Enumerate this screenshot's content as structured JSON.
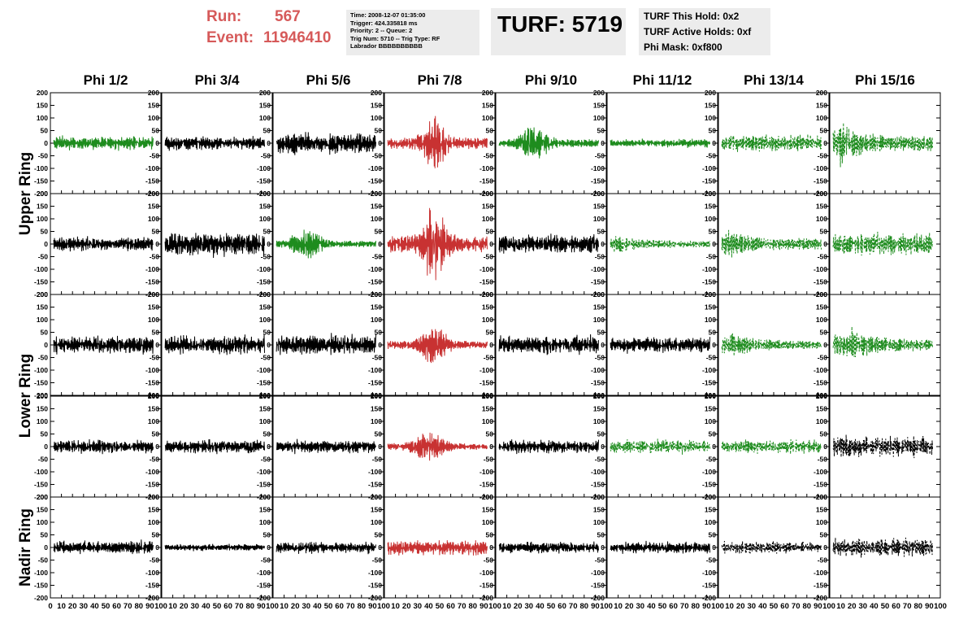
{
  "header": {
    "run_label": "Run:",
    "run_value": "567",
    "event_label": "Event:",
    "event_value": "11946410",
    "info_lines": [
      "Time: 2008-12-07 01:35:00",
      "Trigger: 424.335818 ms",
      "Priority: 2 -- Queue: 2",
      "Trig Num: 5710 -- Trig Type: RF",
      "Labrador BBBBBBBBBB"
    ],
    "turf": "TURF: 5719",
    "turf_lines": [
      "TURF This Hold: 0x2",
      "TURF Active Holds: 0xf",
      "Phi Mask: 0xf800"
    ]
  },
  "colors": {
    "green": "#1e8c1e",
    "red": "#c83232",
    "black": "#000000"
  },
  "chart_data": {
    "type": "line",
    "columns": [
      "Phi 1/2",
      "Phi 3/4",
      "Phi 5/6",
      "Phi 7/8",
      "Phi 9/10",
      "Phi 11/12",
      "Phi 13/14",
      "Phi 15/16"
    ],
    "row_labels": [
      {
        "text": "Upper Ring",
        "rows": [
          0,
          1
        ]
      },
      {
        "text": "Lower Ring",
        "rows": [
          2,
          3
        ]
      },
      {
        "text": "Nadir Ring",
        "rows": [
          4
        ]
      }
    ],
    "ylim": [
      -200,
      200
    ],
    "xlim": [
      0,
      100
    ],
    "y_ticks": [
      "200",
      "150",
      "100",
      "50",
      "0",
      "-50",
      "-100",
      "-150",
      "-200"
    ],
    "x_ticks": [
      "0",
      "10",
      "20",
      "30",
      "40",
      "50",
      "60",
      "70",
      "80",
      "90",
      "100"
    ],
    "x_tick_values": [
      0,
      10,
      20,
      30,
      40,
      50,
      60,
      70,
      80,
      90,
      100
    ],
    "y_tick_values": [
      200,
      150,
      100,
      50,
      0,
      -50,
      -100,
      -150,
      -200
    ],
    "grid": false,
    "cells": [
      [
        {
          "color": "green",
          "style": "solid",
          "amp": 30,
          "env": "flat"
        },
        {
          "color": "black",
          "style": "solid",
          "amp": 30,
          "env": "flat"
        },
        {
          "color": "black",
          "style": "solid",
          "amp": 45,
          "env": "flat"
        },
        {
          "color": "red",
          "style": "solid",
          "amp": 110,
          "env": "burst",
          "center": 45,
          "width": 10
        },
        {
          "color": "green",
          "style": "solid",
          "amp": 75,
          "env": "burst",
          "center": 35,
          "width": 12
        },
        {
          "color": "green",
          "style": "solid",
          "amp": 18,
          "env": "flat"
        },
        {
          "color": "green",
          "style": "dashed",
          "amp": 35,
          "env": "flat"
        },
        {
          "color": "green",
          "style": "dashed",
          "amp": 95,
          "env": "decay",
          "center": 8,
          "width": 14
        }
      ],
      [
        {
          "color": "black",
          "style": "solid",
          "amp": 30,
          "env": "flat"
        },
        {
          "color": "black",
          "style": "solid",
          "amp": 55,
          "env": "flat"
        },
        {
          "color": "green",
          "style": "solid",
          "amp": 60,
          "env": "burst",
          "center": 30,
          "width": 14
        },
        {
          "color": "red",
          "style": "solid",
          "amp": 160,
          "env": "burst",
          "center": 45,
          "width": 10
        },
        {
          "color": "black",
          "style": "solid",
          "amp": 40,
          "env": "flat"
        },
        {
          "color": "green",
          "style": "dashed",
          "amp": 40,
          "env": "decay",
          "center": 5,
          "width": 20
        },
        {
          "color": "green",
          "style": "dashed",
          "amp": 70,
          "env": "decay",
          "center": 8,
          "width": 14
        },
        {
          "color": "green",
          "style": "dashed",
          "amp": 50,
          "env": "flat"
        }
      ],
      [
        {
          "color": "black",
          "style": "solid",
          "amp": 40,
          "env": "flat"
        },
        {
          "color": "black",
          "style": "solid",
          "amp": 40,
          "env": "flat"
        },
        {
          "color": "black",
          "style": "solid",
          "amp": 45,
          "env": "flat"
        },
        {
          "color": "red",
          "style": "solid",
          "amp": 75,
          "env": "burst",
          "center": 45,
          "width": 12
        },
        {
          "color": "black",
          "style": "solid",
          "amp": 40,
          "env": "flat"
        },
        {
          "color": "black",
          "style": "solid",
          "amp": 35,
          "env": "flat"
        },
        {
          "color": "green",
          "style": "dashed",
          "amp": 50,
          "env": "decay",
          "center": 10,
          "width": 20
        },
        {
          "color": "green",
          "style": "dashed",
          "amp": 75,
          "env": "decay",
          "center": 18,
          "width": 14
        }
      ],
      [
        {
          "color": "black",
          "style": "solid",
          "amp": 30,
          "env": "flat"
        },
        {
          "color": "black",
          "style": "solid",
          "amp": 30,
          "env": "flat"
        },
        {
          "color": "black",
          "style": "solid",
          "amp": 30,
          "env": "flat"
        },
        {
          "color": "red",
          "style": "solid",
          "amp": 60,
          "env": "burst",
          "center": 40,
          "width": 14
        },
        {
          "color": "black",
          "style": "solid",
          "amp": 30,
          "env": "flat"
        },
        {
          "color": "green",
          "style": "dashed",
          "amp": 30,
          "env": "flat"
        },
        {
          "color": "green",
          "style": "dashed",
          "amp": 30,
          "env": "flat"
        },
        {
          "color": "black",
          "style": "dashed",
          "amp": 45,
          "env": "flat"
        }
      ],
      [
        {
          "color": "black",
          "style": "solid",
          "amp": 30,
          "env": "flat"
        },
        {
          "color": "black",
          "style": "solid",
          "amp": 15,
          "env": "flat"
        },
        {
          "color": "black",
          "style": "solid",
          "amp": 25,
          "env": "flat"
        },
        {
          "color": "red",
          "style": "solid",
          "amp": 35,
          "env": "flat"
        },
        {
          "color": "black",
          "style": "solid",
          "amp": 25,
          "env": "flat"
        },
        {
          "color": "black",
          "style": "solid",
          "amp": 25,
          "env": "flat"
        },
        {
          "color": "black",
          "style": "dashed",
          "amp": 25,
          "env": "flat"
        },
        {
          "color": "black",
          "style": "dashed",
          "amp": 40,
          "env": "flat"
        }
      ]
    ]
  }
}
